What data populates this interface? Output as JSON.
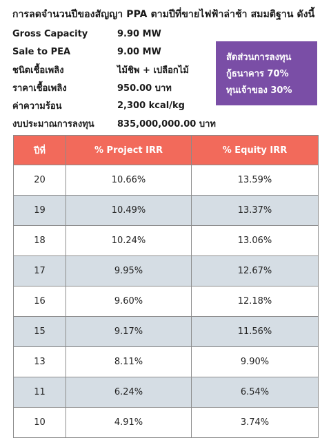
{
  "title": "การลดจำนวนปีของสัญญา PPA ตามปีที่ขายไฟฟ้าล่าช้า สมมติฐาน ดังนี้",
  "specs": [
    {
      "label": "Gross Capacity",
      "value": "9.90 MW"
    },
    {
      "label": "Sale to PEA",
      "value": "9.00 MW"
    },
    {
      "label": "ชนิดเชื้อเพลิง",
      "value": "ไม้ชิพ + เปลือกไม้"
    },
    {
      "label": "ราคาเชื้อเพลิง",
      "value": "950.00 บาท"
    },
    {
      "label": "ค่าความร้อน",
      "value": "2,300 kcal/kg"
    },
    {
      "label": "งบประมาณการลงทุน",
      "value": "835,000,000.00 บาท"
    }
  ],
  "investment_box": {
    "line1": "สัดส่วนการลงทุน",
    "line2": "กู้ธนาคาร 70%",
    "line3": "ทุนเจ้าของ 30%",
    "color": "#7a4ea6"
  },
  "table": {
    "header_color": "#f26a5b",
    "columns": [
      "ปีที่",
      "% Project IRR",
      "% Equity IRR"
    ],
    "rows": [
      [
        "20",
        "10.66%",
        "13.59%"
      ],
      [
        "19",
        "10.49%",
        "13.37%"
      ],
      [
        "18",
        "10.24%",
        "13.06%"
      ],
      [
        "17",
        "9.95%",
        "12.67%"
      ],
      [
        "16",
        "9.60%",
        "12.18%"
      ],
      [
        "15",
        "9.17%",
        "11.56%"
      ],
      [
        "13",
        "8.11%",
        "9.90%"
      ],
      [
        "11",
        "6.24%",
        "6.54%"
      ],
      [
        "10",
        "4.91%",
        "3.74%"
      ]
    ]
  }
}
